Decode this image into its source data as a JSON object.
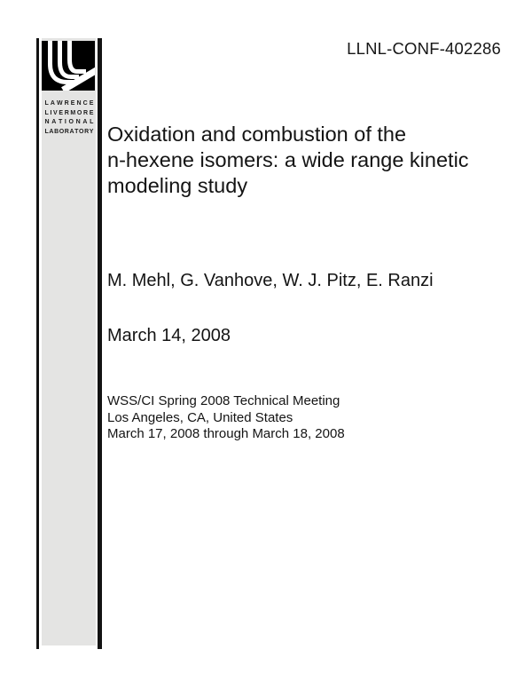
{
  "document": {
    "report_number": "LLNL-CONF-402286",
    "title": "Oxidation and combustion of the\nn-hexene isomers: a wide range kinetic\nmodeling study",
    "authors": "M. Mehl, G. Vanhove, W. J. Pitz, E. Ranzi",
    "date": "March 14, 2008",
    "meeting": "WSS/CI Spring 2008 Technical Meeting\nLos Angeles, CA, United States\nMarch 17, 2008 through March 18, 2008"
  },
  "logo": {
    "wordmark_lines": [
      "LAWRENCE",
      "LIVERMORE",
      "NATIONAL",
      "LABORATORY"
    ],
    "colors": {
      "mark_black": "#000000",
      "panel_gray": "#e4e4e3",
      "text_black": "#141414"
    }
  }
}
